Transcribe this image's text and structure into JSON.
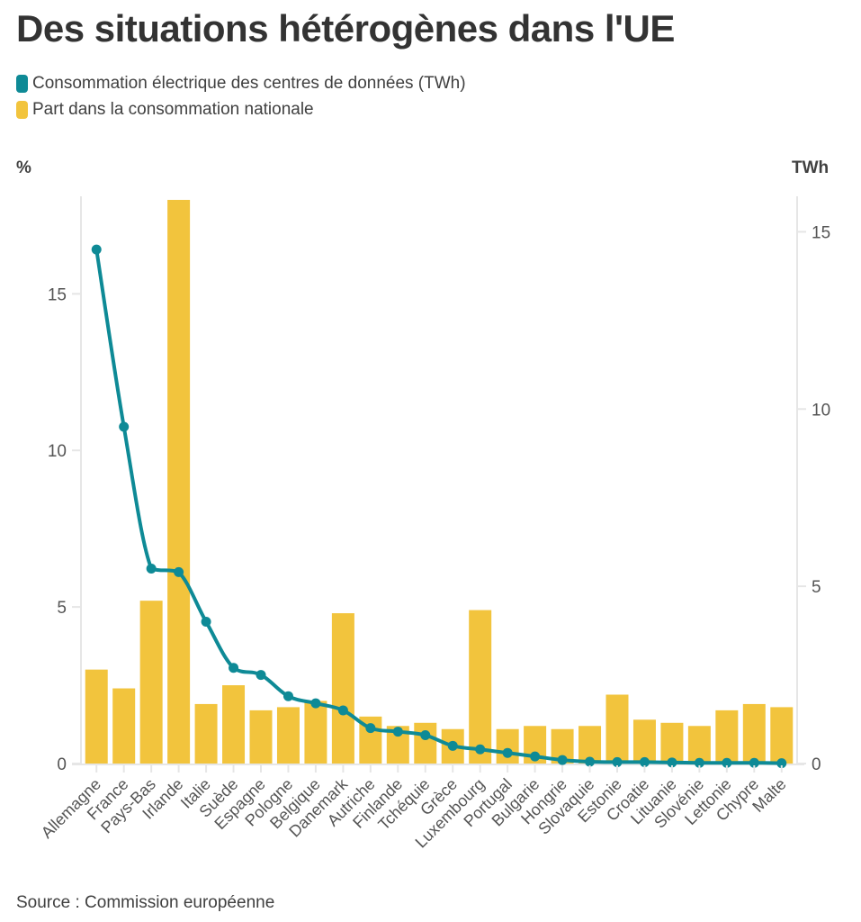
{
  "title": "Des situations hétérogènes dans l'UE",
  "legend": [
    {
      "label": "Consommation électrique des centres de données (TWh)",
      "color": "#0e8a96",
      "icon": "rounded-square-swatch"
    },
    {
      "label": "Part dans la consommation nationale",
      "color": "#f2c43d",
      "icon": "rounded-square-swatch"
    }
  ],
  "axis_units": {
    "left": "%",
    "right": "TWh"
  },
  "source": "Source : Commission européenne",
  "chart_data": {
    "type": "bar+line",
    "title": "Des situations hétérogènes dans l'UE",
    "categories": [
      "Allemagne",
      "France",
      "Pays-Bas",
      "Irlande",
      "Italie",
      "Suède",
      "Espagne",
      "Pologne",
      "Belgique",
      "Danemark",
      "Autriche",
      "Finlande",
      "Tchéquie",
      "Grèce",
      "Luxembourg",
      "Portugal",
      "Bulgarie",
      "Hongrie",
      "Slovaquie",
      "Estonie",
      "Croatie",
      "Lituanie",
      "Slovénie",
      "Lettonie",
      "Chypre",
      "Malte"
    ],
    "series": [
      {
        "name": "Part dans la consommation nationale",
        "type": "bar",
        "axis": "left",
        "unit": "%",
        "color": "#f2c43d",
        "values": [
          3.0,
          2.4,
          5.2,
          18.0,
          1.9,
          2.5,
          1.7,
          1.8,
          2.0,
          4.8,
          1.5,
          1.2,
          1.3,
          1.1,
          4.9,
          1.1,
          1.2,
          1.1,
          1.2,
          2.2,
          1.4,
          1.3,
          1.2,
          1.7,
          1.9,
          1.8
        ]
      },
      {
        "name": "Consommation électrique des centres de données (TWh)",
        "type": "line",
        "axis": "right",
        "unit": "TWh",
        "color": "#0e8a96",
        "values": [
          14.5,
          9.5,
          5.5,
          5.4,
          4.0,
          2.7,
          2.5,
          1.9,
          1.7,
          1.5,
          1.0,
          0.9,
          0.8,
          0.5,
          0.4,
          0.3,
          0.2,
          0.1,
          0.05,
          0.04,
          0.04,
          0.03,
          0.02,
          0.02,
          0.02,
          0.01
        ]
      }
    ],
    "y_left": {
      "label": "%",
      "ticks": [
        0,
        5,
        10,
        15
      ],
      "range": [
        0,
        18
      ]
    },
    "y_right": {
      "label": "TWh",
      "ticks": [
        0,
        5,
        10,
        15
      ],
      "range": [
        0,
        15.9
      ]
    },
    "xlabel": "",
    "grid": false,
    "legend_position": "top-left"
  }
}
